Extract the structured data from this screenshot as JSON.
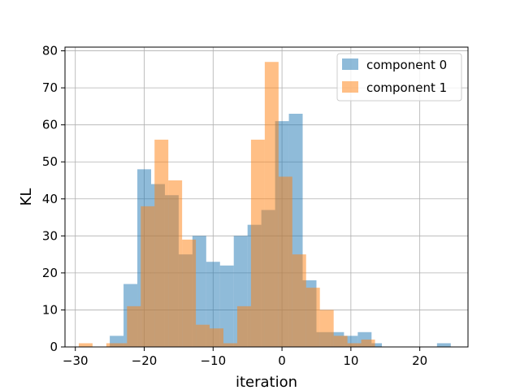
{
  "chart_data": {
    "type": "histogram",
    "title": "",
    "xlabel": "iteration",
    "ylabel": "KL",
    "xlim": [
      -31.5,
      27
    ],
    "ylim": [
      0,
      81
    ],
    "xticks": [
      -30,
      -20,
      -10,
      0,
      10,
      20
    ],
    "yticks": [
      0,
      10,
      20,
      30,
      40,
      50,
      60,
      70,
      80
    ],
    "grid": true,
    "legend_position": "top-right",
    "series": [
      {
        "name": "component 0",
        "color": "#1f77b4",
        "alpha": 0.5,
        "bins": [
          {
            "x0": -25.0,
            "x1": -23.0,
            "count": 3
          },
          {
            "x0": -23.0,
            "x1": -21.0,
            "count": 17
          },
          {
            "x0": -21.0,
            "x1": -19.0,
            "count": 48
          },
          {
            "x0": -19.0,
            "x1": -17.0,
            "count": 44
          },
          {
            "x0": -17.0,
            "x1": -15.0,
            "count": 41
          },
          {
            "x0": -15.0,
            "x1": -13.0,
            "count": 25
          },
          {
            "x0": -13.0,
            "x1": -11.0,
            "count": 30
          },
          {
            "x0": -11.0,
            "x1": -9.0,
            "count": 23
          },
          {
            "x0": -9.0,
            "x1": -7.0,
            "count": 22
          },
          {
            "x0": -7.0,
            "x1": -5.0,
            "count": 30
          },
          {
            "x0": -5.0,
            "x1": -3.0,
            "count": 33
          },
          {
            "x0": -3.0,
            "x1": -1.0,
            "count": 37
          },
          {
            "x0": -1.0,
            "x1": 1.0,
            "count": 61
          },
          {
            "x0": 1.0,
            "x1": 3.0,
            "count": 63
          },
          {
            "x0": 3.0,
            "x1": 5.0,
            "count": 18
          },
          {
            "x0": 5.0,
            "x1": 7.0,
            "count": 4
          },
          {
            "x0": 7.0,
            "x1": 9.0,
            "count": 4
          },
          {
            "x0": 9.0,
            "x1": 11.0,
            "count": 3
          },
          {
            "x0": 11.0,
            "x1": 13.0,
            "count": 4
          },
          {
            "x0": 13.0,
            "x1": 14.5,
            "count": 1
          },
          {
            "x0": 22.5,
            "x1": 24.5,
            "count": 1
          }
        ]
      },
      {
        "name": "component 1",
        "color": "#ff7f0e",
        "alpha": 0.5,
        "bins": [
          {
            "x0": -29.5,
            "x1": -27.5,
            "count": 1
          },
          {
            "x0": -25.5,
            "x1": -24.5,
            "count": 1
          },
          {
            "x0": -24.5,
            "x1": -22.5,
            "count": 1
          },
          {
            "x0": -22.5,
            "x1": -20.5,
            "count": 11
          },
          {
            "x0": -20.5,
            "x1": -18.5,
            "count": 38
          },
          {
            "x0": -18.5,
            "x1": -16.5,
            "count": 56
          },
          {
            "x0": -16.5,
            "x1": -14.5,
            "count": 45
          },
          {
            "x0": -14.5,
            "x1": -12.5,
            "count": 29
          },
          {
            "x0": -12.5,
            "x1": -10.5,
            "count": 6
          },
          {
            "x0": -10.5,
            "x1": -8.5,
            "count": 5
          },
          {
            "x0": -8.5,
            "x1": -6.5,
            "count": 1
          },
          {
            "x0": -6.5,
            "x1": -4.5,
            "count": 11
          },
          {
            "x0": -4.5,
            "x1": -2.5,
            "count": 56
          },
          {
            "x0": -2.5,
            "x1": -0.5,
            "count": 77
          },
          {
            "x0": -0.5,
            "x1": 1.5,
            "count": 46
          },
          {
            "x0": 1.5,
            "x1": 3.5,
            "count": 25
          },
          {
            "x0": 3.5,
            "x1": 5.5,
            "count": 16
          },
          {
            "x0": 5.5,
            "x1": 7.5,
            "count": 10
          },
          {
            "x0": 7.5,
            "x1": 9.5,
            "count": 3
          },
          {
            "x0": 9.5,
            "x1": 11.5,
            "count": 1
          },
          {
            "x0": 11.5,
            "x1": 13.5,
            "count": 2
          }
        ]
      }
    ]
  }
}
